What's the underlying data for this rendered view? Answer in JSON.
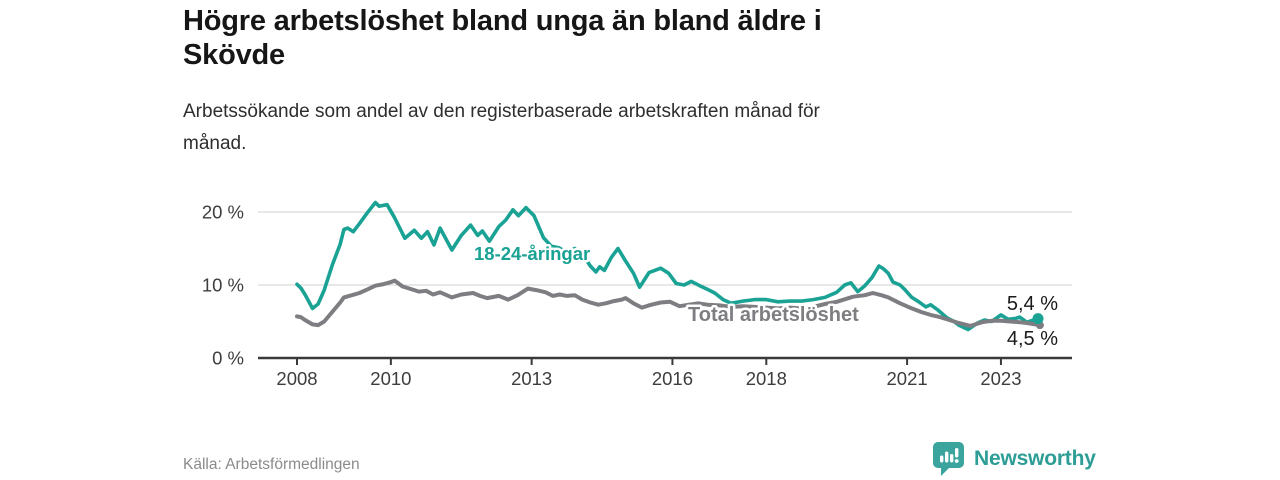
{
  "header": {
    "title_lines": [
      "Högre arbetslöshet bland unga än bland äldre i",
      "Skövde"
    ],
    "subtitle_lines": [
      "Arbetssökande som andel av den registerbaserade arbetskraften månad för",
      "månad."
    ]
  },
  "footer": {
    "source": "Källa: Arbetsförmedlingen",
    "brand": "Newsworthy",
    "brand_icon": "newsworthy-chart-bubble-icon"
  },
  "colors": {
    "youth_line": "#1aa294",
    "total_line": "#7e7e82",
    "grid": "#d9d9d9",
    "axis": "#3a3a3a",
    "tick_text": "#3d3d3d",
    "end_label_text": "#1a1a1a",
    "brand": "#2d9d96",
    "halo": "#ffffff"
  },
  "chart_data": {
    "type": "line",
    "title": "Högre arbetslöshet bland unga än bland äldre i Skövde",
    "subtitle": "Arbetssökande som andel av den registerbaserade arbetskraften månad för månad.",
    "xlabel": "",
    "ylabel": "",
    "grid": "horizontal",
    "legend_position": "inline-labels",
    "xlim": [
      2007.2,
      2024.5
    ],
    "ylim": [
      0,
      23
    ],
    "y_ticks": [
      {
        "value": 0,
        "label": "0 %"
      },
      {
        "value": 10,
        "label": "10 %"
      },
      {
        "value": 20,
        "label": "20 %"
      }
    ],
    "x_ticks": [
      {
        "value": 2008,
        "label": "2008"
      },
      {
        "value": 2010,
        "label": "2010"
      },
      {
        "value": 2013,
        "label": "2013"
      },
      {
        "value": 2016,
        "label": "2016"
      },
      {
        "value": 2018,
        "label": "2018"
      },
      {
        "value": 2021,
        "label": "2021"
      },
      {
        "value": 2023,
        "label": "2023"
      }
    ],
    "series": [
      {
        "id": "youth",
        "name": "18-24-åringar",
        "color": "#1aa294",
        "end_label": "5,4 %",
        "end_value": 5.4,
        "points": [
          [
            2008.0,
            10.1
          ],
          [
            2008.08,
            9.6
          ],
          [
            2008.17,
            8.7
          ],
          [
            2008.33,
            6.8
          ],
          [
            2008.45,
            7.4
          ],
          [
            2008.58,
            9.3
          ],
          [
            2008.75,
            12.7
          ],
          [
            2008.92,
            15.6
          ],
          [
            2009.0,
            17.6
          ],
          [
            2009.08,
            17.8
          ],
          [
            2009.2,
            17.3
          ],
          [
            2009.33,
            18.4
          ],
          [
            2009.5,
            19.9
          ],
          [
            2009.67,
            21.3
          ],
          [
            2009.75,
            20.8
          ],
          [
            2009.92,
            21.0
          ],
          [
            2010.08,
            19.2
          ],
          [
            2010.3,
            16.4
          ],
          [
            2010.5,
            17.5
          ],
          [
            2010.65,
            16.4
          ],
          [
            2010.78,
            17.3
          ],
          [
            2010.92,
            15.5
          ],
          [
            2011.05,
            17.8
          ],
          [
            2011.3,
            14.8
          ],
          [
            2011.5,
            16.8
          ],
          [
            2011.7,
            18.2
          ],
          [
            2011.85,
            16.8
          ],
          [
            2011.95,
            17.4
          ],
          [
            2012.1,
            16.0
          ],
          [
            2012.3,
            18.0
          ],
          [
            2012.45,
            18.9
          ],
          [
            2012.6,
            20.3
          ],
          [
            2012.72,
            19.5
          ],
          [
            2012.88,
            20.6
          ],
          [
            2013.05,
            19.5
          ],
          [
            2013.25,
            16.5
          ],
          [
            2013.42,
            15.3
          ],
          [
            2013.58,
            15.1
          ],
          [
            2013.75,
            14.5
          ],
          [
            2013.92,
            15.0
          ],
          [
            2014.08,
            14.3
          ],
          [
            2014.25,
            12.6
          ],
          [
            2014.37,
            11.8
          ],
          [
            2014.45,
            12.5
          ],
          [
            2014.55,
            12.0
          ],
          [
            2014.7,
            13.8
          ],
          [
            2014.84,
            15.0
          ],
          [
            2015.0,
            13.3
          ],
          [
            2015.17,
            11.6
          ],
          [
            2015.3,
            9.7
          ],
          [
            2015.5,
            11.7
          ],
          [
            2015.75,
            12.3
          ],
          [
            2015.92,
            11.6
          ],
          [
            2016.08,
            10.2
          ],
          [
            2016.25,
            10.0
          ],
          [
            2016.4,
            10.5
          ],
          [
            2016.58,
            9.9
          ],
          [
            2016.75,
            9.4
          ],
          [
            2016.9,
            8.9
          ],
          [
            2017.08,
            8.0
          ],
          [
            2017.25,
            7.5
          ],
          [
            2017.5,
            7.8
          ],
          [
            2017.75,
            8.0
          ],
          [
            2018.0,
            8.0
          ],
          [
            2018.25,
            7.7
          ],
          [
            2018.5,
            7.8
          ],
          [
            2018.75,
            7.8
          ],
          [
            2019.0,
            8.0
          ],
          [
            2019.25,
            8.3
          ],
          [
            2019.5,
            9.0
          ],
          [
            2019.67,
            10.0
          ],
          [
            2019.8,
            10.3
          ],
          [
            2019.95,
            9.1
          ],
          [
            2020.1,
            9.9
          ],
          [
            2020.25,
            11.0
          ],
          [
            2020.4,
            12.6
          ],
          [
            2020.5,
            12.2
          ],
          [
            2020.6,
            11.6
          ],
          [
            2020.7,
            10.4
          ],
          [
            2020.85,
            10.0
          ],
          [
            2020.95,
            9.4
          ],
          [
            2021.1,
            8.3
          ],
          [
            2021.25,
            7.7
          ],
          [
            2021.4,
            7.0
          ],
          [
            2021.5,
            7.3
          ],
          [
            2021.65,
            6.6
          ],
          [
            2021.85,
            5.5
          ],
          [
            2022.0,
            5.0
          ],
          [
            2022.1,
            4.5
          ],
          [
            2022.3,
            3.9
          ],
          [
            2022.5,
            4.8
          ],
          [
            2022.65,
            5.2
          ],
          [
            2022.8,
            5.0
          ],
          [
            2023.0,
            5.9
          ],
          [
            2023.15,
            5.3
          ],
          [
            2023.3,
            5.4
          ],
          [
            2023.4,
            5.6
          ],
          [
            2023.55,
            4.9
          ],
          [
            2023.7,
            5.2
          ],
          [
            2023.79,
            5.4
          ]
        ]
      },
      {
        "id": "total",
        "name": "Total arbetslöshet",
        "color": "#7e7e82",
        "end_label": "4,5 %",
        "end_value": 4.5,
        "points": [
          [
            2008.0,
            5.7
          ],
          [
            2008.08,
            5.6
          ],
          [
            2008.17,
            5.2
          ],
          [
            2008.33,
            4.6
          ],
          [
            2008.45,
            4.5
          ],
          [
            2008.58,
            5.0
          ],
          [
            2008.75,
            6.3
          ],
          [
            2008.92,
            7.6
          ],
          [
            2009.0,
            8.3
          ],
          [
            2009.17,
            8.6
          ],
          [
            2009.33,
            8.9
          ],
          [
            2009.5,
            9.4
          ],
          [
            2009.67,
            9.9
          ],
          [
            2009.83,
            10.1
          ],
          [
            2010.0,
            10.4
          ],
          [
            2010.08,
            10.6
          ],
          [
            2010.25,
            9.8
          ],
          [
            2010.45,
            9.4
          ],
          [
            2010.6,
            9.1
          ],
          [
            2010.75,
            9.2
          ],
          [
            2010.9,
            8.7
          ],
          [
            2011.05,
            9.0
          ],
          [
            2011.3,
            8.3
          ],
          [
            2011.5,
            8.7
          ],
          [
            2011.75,
            8.9
          ],
          [
            2011.9,
            8.5
          ],
          [
            2012.05,
            8.2
          ],
          [
            2012.3,
            8.5
          ],
          [
            2012.5,
            8.0
          ],
          [
            2012.7,
            8.6
          ],
          [
            2012.92,
            9.5
          ],
          [
            2013.1,
            9.3
          ],
          [
            2013.3,
            9.0
          ],
          [
            2013.45,
            8.5
          ],
          [
            2013.6,
            8.7
          ],
          [
            2013.75,
            8.5
          ],
          [
            2013.92,
            8.6
          ],
          [
            2014.08,
            8.0
          ],
          [
            2014.25,
            7.6
          ],
          [
            2014.42,
            7.3
          ],
          [
            2014.58,
            7.5
          ],
          [
            2014.75,
            7.8
          ],
          [
            2014.92,
            8.0
          ],
          [
            2015.0,
            8.2
          ],
          [
            2015.17,
            7.5
          ],
          [
            2015.35,
            6.9
          ],
          [
            2015.55,
            7.3
          ],
          [
            2015.75,
            7.6
          ],
          [
            2015.95,
            7.7
          ],
          [
            2016.15,
            7.1
          ],
          [
            2016.35,
            7.3
          ],
          [
            2016.55,
            7.5
          ],
          [
            2016.75,
            7.3
          ],
          [
            2017.0,
            7.2
          ],
          [
            2017.25,
            7.0
          ],
          [
            2017.5,
            7.1
          ],
          [
            2017.75,
            7.0
          ],
          [
            2018.0,
            6.9
          ],
          [
            2018.25,
            6.8
          ],
          [
            2018.5,
            6.9
          ],
          [
            2018.75,
            6.8
          ],
          [
            2019.0,
            7.0
          ],
          [
            2019.25,
            7.4
          ],
          [
            2019.5,
            7.7
          ],
          [
            2019.85,
            8.4
          ],
          [
            2020.1,
            8.6
          ],
          [
            2020.27,
            8.9
          ],
          [
            2020.45,
            8.6
          ],
          [
            2020.6,
            8.3
          ],
          [
            2020.85,
            7.5
          ],
          [
            2021.1,
            6.8
          ],
          [
            2021.3,
            6.3
          ],
          [
            2021.5,
            5.9
          ],
          [
            2021.7,
            5.6
          ],
          [
            2021.9,
            5.2
          ],
          [
            2022.1,
            4.8
          ],
          [
            2022.35,
            4.4
          ],
          [
            2022.6,
            4.9
          ],
          [
            2022.8,
            5.1
          ],
          [
            2023.0,
            5.1
          ],
          [
            2023.2,
            5.0
          ],
          [
            2023.4,
            4.9
          ],
          [
            2023.55,
            4.8
          ],
          [
            2023.83,
            4.5
          ]
        ]
      }
    ]
  }
}
